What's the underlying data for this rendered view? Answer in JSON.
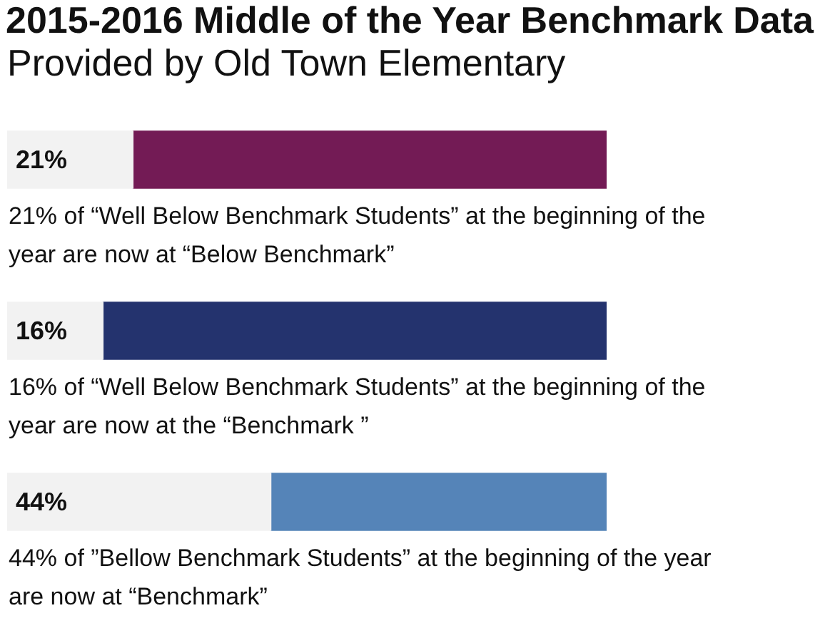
{
  "chart_data": {
    "type": "bar",
    "title": "2015-2016 Middle of the Year Benchmark Data",
    "subtitle": "Provided by Old Town Elementary",
    "orientation": "horizontal",
    "stacked": true,
    "categories": [
      null,
      null,
      null
    ],
    "series": [
      {
        "values": [
          21,
          16,
          44
        ],
        "color": "#f2f2f2",
        "value_labels": [
          "21%",
          "16%",
          "44%"
        ]
      },
      {
        "values": [
          79,
          84,
          56
        ],
        "colors": [
          "#731b55",
          "#24336e",
          "#5584b8"
        ]
      }
    ],
    "xlim": [
      0,
      100
    ],
    "tick_labels": false,
    "annotations": [
      "21% of “Well Below Benchmark Students” at the beginning of the year are now at “Below Benchmark”",
      "16% of “Well Below Benchmark Students” at the beginning of the year are now at the “Benchmark ”",
      "44% of ”Bellow Benchmark Students” at the beginning of the year are now at “Benchmark”"
    ]
  }
}
